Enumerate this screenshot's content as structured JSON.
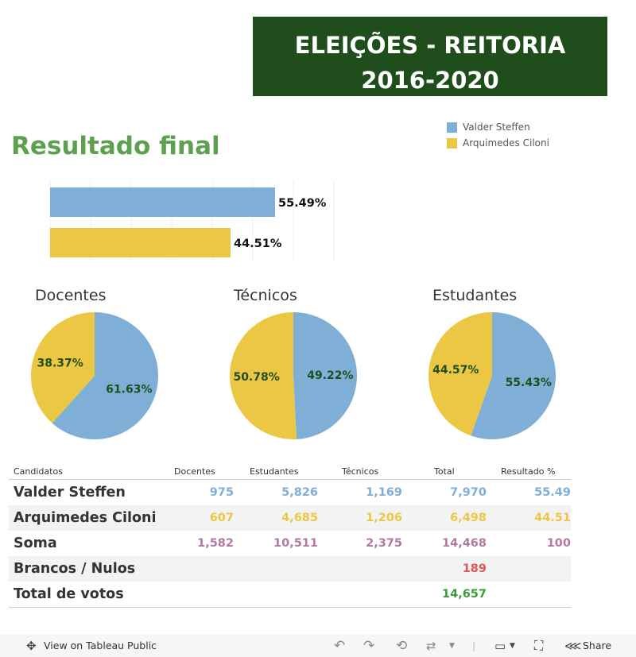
{
  "header": {
    "title": "ELEIÇÕES - REITORIA 2016-2020"
  },
  "legend": [
    {
      "label": "Valder Steffen",
      "color": "#7fafd6"
    },
    {
      "label": "Arquimedes Ciloni",
      "color": "#ebc744"
    }
  ],
  "section_title": "Resultado final",
  "chart_data": [
    {
      "type": "bar",
      "title": "Resultado final",
      "categories": [
        "Valder Steffen",
        "Arquimedes Ciloni"
      ],
      "values": [
        55.49,
        44.51
      ],
      "labels": [
        "55.49%",
        "44.51%"
      ],
      "colors": [
        "#7fafd6",
        "#ebc744"
      ],
      "xlim": [
        0,
        70
      ],
      "grid": true
    },
    {
      "type": "pie",
      "title": "Docentes",
      "series": [
        {
          "name": "Valder Steffen",
          "value": 61.63,
          "label": "61.63%"
        },
        {
          "name": "Arquimedes Ciloni",
          "value": 38.37,
          "label": "38.37%"
        }
      ]
    },
    {
      "type": "pie",
      "title": "Técnicos",
      "series": [
        {
          "name": "Valder Steffen",
          "value": 49.22,
          "label": "49.22%"
        },
        {
          "name": "Arquimedes Ciloni",
          "value": 50.78,
          "label": "50.78%"
        }
      ]
    },
    {
      "type": "pie",
      "title": "Estudantes",
      "series": [
        {
          "name": "Valder Steffen",
          "value": 55.43,
          "label": "55.43%"
        },
        {
          "name": "Arquimedes Ciloni",
          "value": 44.57,
          "label": "44.57%"
        }
      ]
    }
  ],
  "table": {
    "headers": [
      "Candidatos",
      "Docentes",
      "Estudantes",
      "Técnicos",
      "Total",
      "Resultado %"
    ],
    "rows": [
      {
        "name": "Valder Steffen",
        "values": [
          "975",
          "5,826",
          "1,169",
          "7,970",
          "55.49"
        ],
        "color": "#7fafd6"
      },
      {
        "name": "Arquimedes Ciloni",
        "values": [
          "607",
          "4,685",
          "1,206",
          "6,498",
          "44.51"
        ],
        "color": "#ebc744"
      },
      {
        "name": "Soma",
        "values": [
          "1,582",
          "10,511",
          "2,375",
          "14,468",
          "100"
        ],
        "color": "#b07aa1"
      },
      {
        "name": "Brancos / Nulos",
        "values": [
          "",
          "",
          "",
          "189",
          ""
        ],
        "color": "#e15759"
      },
      {
        "name": "Total de votos",
        "values": [
          "",
          "",
          "",
          "14,657",
          ""
        ],
        "color": "#3b9a3b"
      }
    ]
  },
  "footer": {
    "view_label": "View on Tableau Public",
    "share_label": "Share"
  },
  "colors": {
    "blue": "#7fafd6",
    "yellow": "#ebc744",
    "pie_label": "#1f4d1c",
    "banner_bg": "#1f4d1c",
    "title_green": "#5da150"
  }
}
